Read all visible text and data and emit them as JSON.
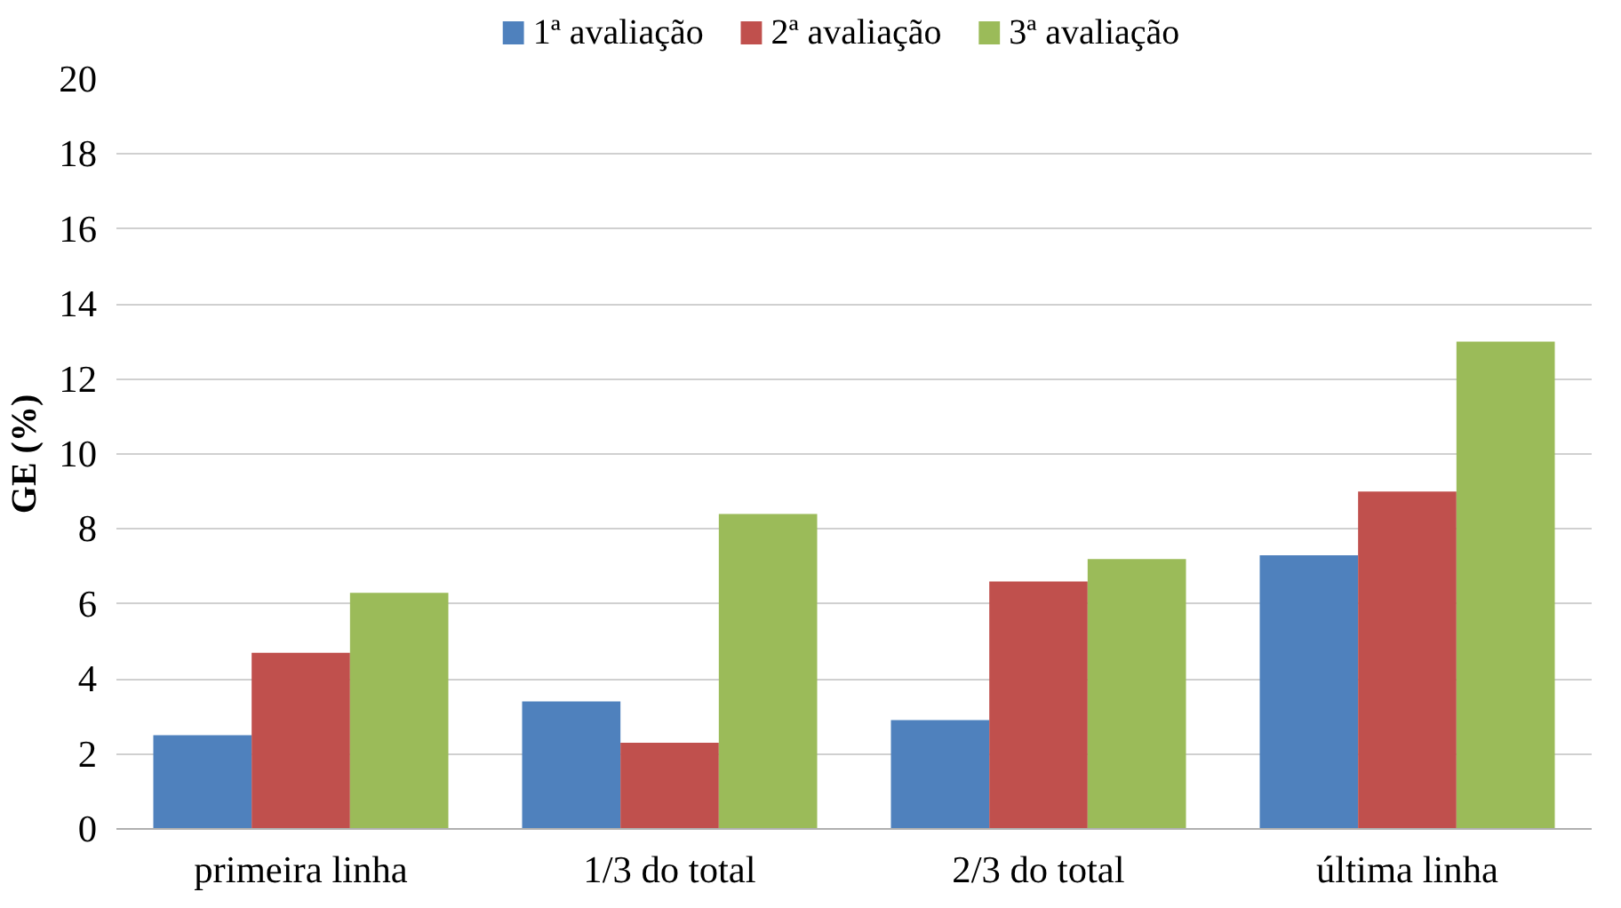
{
  "chart_data": {
    "type": "bar",
    "ylabel": "GE (%)",
    "categories": [
      "primeira linha",
      "1/3 do total",
      "2/3 do total",
      "última linha"
    ],
    "series": [
      {
        "name": "1ª avaliação",
        "color": "#4f81bd",
        "values": [
          2.5,
          3.4,
          2.9,
          7.3
        ]
      },
      {
        "name": "2ª avaliação",
        "color": "#c0504d",
        "values": [
          4.7,
          2.3,
          6.6,
          9.0
        ]
      },
      {
        "name": "3ª avaliação",
        "color": "#9bbb59",
        "values": [
          6.3,
          8.4,
          7.2,
          13.0
        ]
      }
    ],
    "ylim": [
      0,
      20
    ],
    "yticks": [
      0,
      2,
      4,
      6,
      8,
      10,
      12,
      14,
      16,
      18,
      20
    ],
    "grid": "y",
    "legend": "top"
  }
}
